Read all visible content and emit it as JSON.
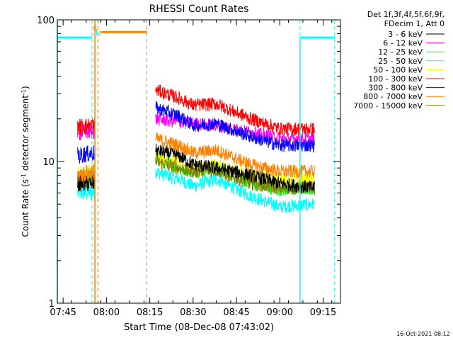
{
  "chart_data": {
    "type": "line",
    "title": "RHESSI Count Rates",
    "xlabel": "Start Time (08-Dec-08 07:43:02)",
    "ylabel": "Count Rate (s⁻¹ detector segment⁻¹)",
    "ylabel_parts": {
      "base": "Count Rate (s",
      "sup1": "-1",
      "mid": " detector segment",
      "sup2": "-1",
      "end": ")"
    },
    "yscale": "log",
    "xlim": [
      "07:43",
      "09:21"
    ],
    "ylim": [
      1,
      100
    ],
    "xticks": [
      "07:45",
      "08:00",
      "08:15",
      "08:30",
      "08:45",
      "09:00",
      "09:15"
    ],
    "yticks": [
      "1",
      "10",
      "100"
    ],
    "legend_placement": "right",
    "legend_header": [
      "Det 1f,3f,4f,5f,6f,9f,",
      "FDecim 1, Att 0"
    ],
    "footer_date": "16-Oct-2021 08:12",
    "series": [
      {
        "name": "3 - 6 keV",
        "color": "#000000",
        "pre": [
          7.0,
          7.0
        ],
        "post": [
          12.0,
          11.0,
          9.5,
          9.0,
          8.0,
          7.0,
          6.5
        ]
      },
      {
        "name": "6 - 12 keV",
        "color": "#ff00ff",
        "pre": [
          16.0,
          16.5
        ],
        "post": [
          20.0,
          19.0,
          18.5,
          18.0,
          16.0,
          14.5,
          14.5
        ]
      },
      {
        "name": "12 - 25 keV",
        "color": "#00ff00",
        "pre": [
          7.5,
          8.0
        ],
        "post": [
          10.5,
          9.0,
          8.5,
          9.0,
          7.0,
          6.3,
          6.5
        ]
      },
      {
        "name": "25 - 50 keV",
        "color": "#00ffff",
        "pre": [
          6.0,
          6.0
        ],
        "post": [
          8.5,
          7.5,
          6.7,
          7.5,
          5.7,
          4.8,
          5.0
        ]
      },
      {
        "name": "50 - 100 keV",
        "color": "#ffff00",
        "pre": [
          8.0,
          8.5
        ],
        "post": [
          11.0,
          10.0,
          9.0,
          9.5,
          8.0,
          7.5,
          7.5
        ]
      },
      {
        "name": "100 - 300 keV",
        "color": "#ff0000",
        "pre": [
          17.5,
          18.0
        ],
        "post": [
          32.0,
          28.0,
          25.0,
          25.5,
          20.0,
          17.0,
          17.0
        ]
      },
      {
        "name": "300 - 800 keV",
        "color": "#0000ff",
        "pre": [
          11.0,
          11.5
        ],
        "post": [
          24.0,
          21.0,
          18.0,
          18.5,
          15.0,
          13.0,
          13.0
        ]
      },
      {
        "name": "800 - 7000 keV",
        "color": "#ff8000",
        "pre": [
          8.0,
          8.5
        ],
        "post": [
          14.5,
          13.0,
          11.5,
          12.0,
          9.5,
          8.5,
          8.5
        ]
      },
      {
        "name": "7000 - 15000 keV",
        "color": "#808000",
        "pre": [
          7.5,
          7.5
        ],
        "post": [
          10.0,
          9.0,
          8.5,
          8.7,
          7.0,
          6.5,
          6.5
        ]
      }
    ],
    "pre_range": [
      "07:50",
      "07:56"
    ],
    "post_range": [
      "08:17",
      "09:12"
    ],
    "post_knots": [
      "08:17",
      "08:25",
      "08:30",
      "08:38",
      "08:50",
      "09:00",
      "09:12"
    ],
    "flags": [
      {
        "label": "S",
        "color": "#ff8000",
        "x": "07:56"
      },
      {
        "label": "N",
        "color": "#00ffff",
        "x": "07:57"
      }
    ],
    "night_bars": [
      {
        "color": "#00ffff",
        "range": [
          "07:43",
          "07:55"
        ],
        "y": 75
      },
      {
        "color": "#00ffff",
        "range": [
          "09:07",
          "09:19"
        ],
        "y": 75
      },
      {
        "color": "#ff8000",
        "range": [
          "07:58",
          "08:14"
        ],
        "y": 82
      }
    ],
    "dashed_lines": [
      {
        "x": "07:55",
        "color": "#00ffff"
      },
      {
        "x": "07:57",
        "color": "#ff8000"
      },
      {
        "x": "08:14",
        "color": "#ff8000"
      },
      {
        "x": "09:07",
        "color": "#00ffff"
      },
      {
        "x": "09:19",
        "color": "#00ffff"
      }
    ],
    "grid": false
  }
}
